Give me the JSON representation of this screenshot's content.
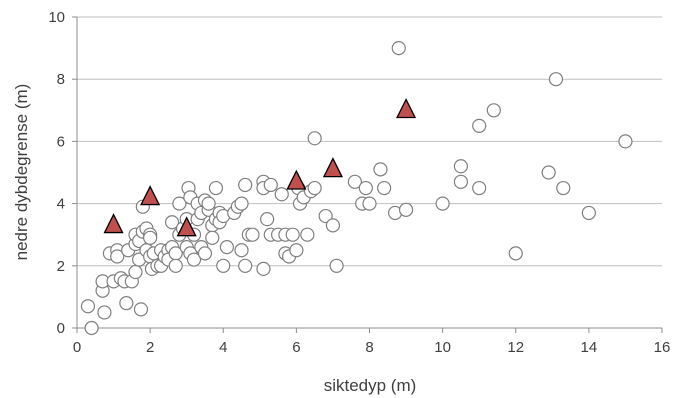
{
  "chart_data": {
    "type": "scatter",
    "title": "",
    "xlabel": "siktedyp (m)",
    "ylabel": "nedre dybdegrense (m)",
    "xlim": [
      0,
      16
    ],
    "ylim": [
      0,
      10
    ],
    "xticks": [
      0,
      2,
      4,
      6,
      8,
      10,
      12,
      14,
      16
    ],
    "yticks": [
      0,
      2,
      4,
      6,
      8,
      10
    ],
    "grid": "horizontal",
    "legend": "none",
    "series": [
      {
        "marker": "circle",
        "fill": "#ffffff",
        "stroke": "#7f7f7f",
        "points": [
          [
            0.3,
            0.7
          ],
          [
            0.4,
            0.0
          ],
          [
            0.7,
            1.2
          ],
          [
            0.7,
            1.5
          ],
          [
            0.75,
            0.5
          ],
          [
            0.9,
            2.4
          ],
          [
            1.0,
            1.5
          ],
          [
            1.1,
            2.5
          ],
          [
            1.1,
            2.3
          ],
          [
            1.2,
            1.6
          ],
          [
            1.3,
            1.5
          ],
          [
            1.35,
            0.8
          ],
          [
            1.4,
            2.5
          ],
          [
            1.5,
            1.5
          ],
          [
            1.6,
            1.8
          ],
          [
            1.6,
            2.7
          ],
          [
            1.6,
            3.0
          ],
          [
            1.7,
            2.8
          ],
          [
            1.7,
            2.2
          ],
          [
            1.75,
            0.6
          ],
          [
            1.8,
            3.1
          ],
          [
            1.8,
            3.9
          ],
          [
            1.9,
            3.2
          ],
          [
            1.9,
            2.5
          ],
          [
            2.0,
            3.0
          ],
          [
            2.0,
            2.9
          ],
          [
            2.0,
            2.3
          ],
          [
            2.05,
            1.9
          ],
          [
            2.1,
            2.4
          ],
          [
            2.2,
            2.0
          ],
          [
            2.3,
            2.5
          ],
          [
            2.3,
            2.0
          ],
          [
            2.4,
            2.3
          ],
          [
            2.5,
            2.5
          ],
          [
            2.5,
            2.2
          ],
          [
            2.6,
            2.6
          ],
          [
            2.6,
            3.4
          ],
          [
            2.7,
            2.4
          ],
          [
            2.7,
            2.0
          ],
          [
            2.8,
            3.0
          ],
          [
            2.8,
            4.0
          ],
          [
            2.9,
            3.2
          ],
          [
            3.0,
            2.6
          ],
          [
            3.0,
            3.5
          ],
          [
            3.05,
            4.5
          ],
          [
            3.1,
            4.2
          ],
          [
            3.1,
            2.4
          ],
          [
            3.2,
            2.2
          ],
          [
            3.2,
            3.0
          ],
          [
            3.3,
            4.0
          ],
          [
            3.3,
            3.5
          ],
          [
            3.4,
            2.6
          ],
          [
            3.4,
            3.7
          ],
          [
            3.5,
            4.1
          ],
          [
            3.5,
            2.4
          ],
          [
            3.6,
            3.8
          ],
          [
            3.6,
            4.0
          ],
          [
            3.7,
            3.3
          ],
          [
            3.7,
            2.9
          ],
          [
            3.8,
            3.5
          ],
          [
            3.8,
            4.5
          ],
          [
            3.9,
            3.7
          ],
          [
            3.9,
            3.4
          ],
          [
            4.0,
            2.0
          ],
          [
            4.0,
            3.6
          ],
          [
            4.1,
            2.6
          ],
          [
            4.3,
            3.7
          ],
          [
            4.4,
            3.9
          ],
          [
            4.5,
            4.0
          ],
          [
            4.5,
            2.5
          ],
          [
            4.6,
            4.6
          ],
          [
            4.6,
            2.0
          ],
          [
            4.7,
            3.0
          ],
          [
            4.8,
            3.0
          ],
          [
            5.1,
            4.7
          ],
          [
            5.1,
            1.9
          ],
          [
            5.1,
            4.5
          ],
          [
            5.2,
            3.5
          ],
          [
            5.3,
            4.6
          ],
          [
            5.3,
            3.0
          ],
          [
            5.5,
            3.0
          ],
          [
            5.6,
            4.3
          ],
          [
            5.7,
            3.0
          ],
          [
            5.7,
            2.4
          ],
          [
            5.8,
            2.3
          ],
          [
            5.9,
            3.0
          ],
          [
            6.0,
            2.5
          ],
          [
            6.05,
            4.5
          ],
          [
            6.1,
            4.0
          ],
          [
            6.2,
            4.2
          ],
          [
            6.3,
            3.0
          ],
          [
            6.4,
            4.4
          ],
          [
            6.5,
            4.5
          ],
          [
            6.5,
            6.1
          ],
          [
            6.8,
            3.6
          ],
          [
            7.0,
            3.3
          ],
          [
            7.1,
            2.0
          ],
          [
            7.6,
            4.7
          ],
          [
            7.8,
            4.0
          ],
          [
            7.9,
            4.5
          ],
          [
            8.0,
            4.0
          ],
          [
            8.3,
            5.1
          ],
          [
            8.4,
            4.5
          ],
          [
            8.7,
            3.7
          ],
          [
            8.8,
            9.0
          ],
          [
            9.0,
            3.8
          ],
          [
            10.0,
            4.0
          ],
          [
            10.5,
            5.2
          ],
          [
            10.5,
            4.7
          ],
          [
            11.0,
            6.5
          ],
          [
            11.0,
            4.5
          ],
          [
            11.4,
            7.0
          ],
          [
            12.0,
            2.4
          ],
          [
            12.9,
            5.0
          ],
          [
            13.1,
            8.0
          ],
          [
            13.3,
            4.5
          ],
          [
            14.0,
            3.7
          ],
          [
            15.0,
            6.0
          ]
        ]
      },
      {
        "marker": "triangle",
        "fill": "#c0504d",
        "stroke": "#000000",
        "points": [
          [
            1.0,
            3.3
          ],
          [
            2.0,
            4.2
          ],
          [
            3.0,
            3.2
          ],
          [
            6.0,
            4.7
          ],
          [
            7.0,
            5.1
          ],
          [
            9.0,
            7.0
          ]
        ]
      }
    ]
  }
}
